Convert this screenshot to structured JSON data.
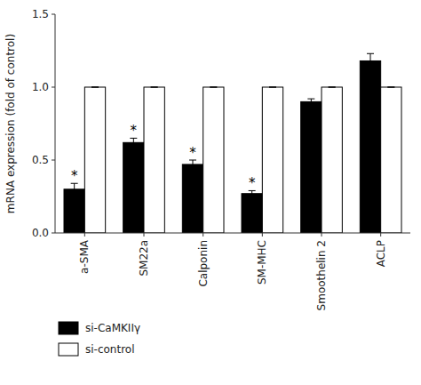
{
  "chart_data": {
    "type": "bar",
    "categories": [
      "a-SMA",
      "SM22a",
      "Calponin",
      "SM-MHC",
      "Smoothelin 2",
      "ACLP"
    ],
    "series": [
      {
        "name": "si-CaMKIIγ",
        "color": "#000000",
        "values": [
          0.3,
          0.62,
          0.47,
          0.27,
          0.9,
          1.18
        ],
        "errors": [
          0.04,
          0.03,
          0.03,
          0.02,
          0.02,
          0.05
        ]
      },
      {
        "name": "si-control",
        "color": "#ffffff",
        "values": [
          1.0,
          1.0,
          1.0,
          1.0,
          1.0,
          1.0
        ],
        "errors": [
          0.0,
          0.0,
          0.0,
          0.0,
          0.0,
          0.0
        ]
      }
    ],
    "y_label": "mRNA expression (fold of control)",
    "ylim": [
      0,
      1.5
    ],
    "yticks": [
      {
        "value": 0,
        "label": "0.0"
      },
      0.5,
      {
        "value": 1,
        "label": "1.0"
      },
      1.5
    ],
    "annotations": [
      {
        "text": "*",
        "category": "a-SMA",
        "series": "si-CaMKIIγ"
      },
      {
        "text": "*",
        "category": "SM22a",
        "series": "si-CaMKIIγ"
      },
      {
        "text": "*",
        "category": "Calponin",
        "series": "si-CaMKIIγ"
      },
      {
        "text": "*",
        "category": "SM-MHC",
        "series": "si-CaMKIIγ"
      }
    ],
    "grid": false,
    "legend": "bottom"
  }
}
